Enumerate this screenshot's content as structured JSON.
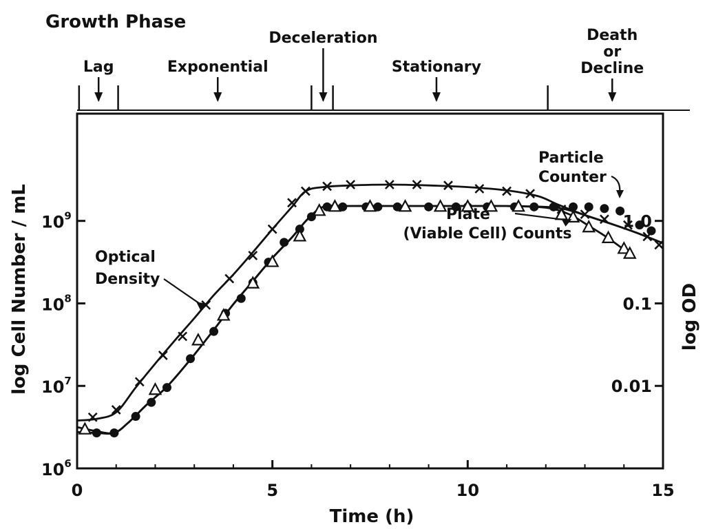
{
  "chart_data": {
    "type": "line",
    "title": "",
    "xlabel": "Time (h)",
    "ylabel": "log Cell Number / mL",
    "ylabel_right": "log OD",
    "xlim": [
      0,
      15
    ],
    "ylim_log10": [
      6,
      10.3
    ],
    "x_ticks": [
      "0",
      "5",
      "10",
      "15"
    ],
    "y_ticks": [
      {
        "exp": 6,
        "base": "10",
        "sup": "6"
      },
      {
        "exp": 7,
        "base": "10",
        "sup": "7"
      },
      {
        "exp": 8,
        "base": "10",
        "sup": "8"
      },
      {
        "exp": 9,
        "base": "10",
        "sup": "9"
      }
    ],
    "right_ticks": [
      {
        "label": "1.0",
        "od": 1.0
      },
      {
        "label": "0.1",
        "od": 0.1
      },
      {
        "label": "0.01",
        "od": 0.01
      }
    ],
    "growth_phase": {
      "title": "Growth Phase",
      "phases": [
        {
          "name": "Lag",
          "arrow_x": 0.55
        },
        {
          "name": "Exponential",
          "arrow_x": 3.6
        },
        {
          "name": "Deceleration",
          "arrow_x": 6.3
        },
        {
          "name": "Stationary",
          "arrow_x": 9.2
        },
        {
          "name": "Death\nor\nDecline",
          "arrow_x": 13.7
        }
      ],
      "boundaries": [
        0.05,
        1.05,
        6.0,
        6.55,
        12.05
      ]
    },
    "series": [
      {
        "name": "Optical Density",
        "marker": "x",
        "points": [
          [
            0.4,
            6.62
          ],
          [
            1.0,
            6.71
          ],
          [
            1.6,
            7.05
          ],
          [
            2.2,
            7.37
          ],
          [
            2.7,
            7.6
          ],
          [
            3.3,
            7.98
          ],
          [
            3.9,
            8.3
          ],
          [
            4.5,
            8.58
          ],
          [
            5.0,
            8.9
          ],
          [
            5.5,
            9.22
          ],
          [
            5.85,
            9.36
          ],
          [
            6.4,
            9.42
          ],
          [
            7.0,
            9.44
          ],
          [
            8.0,
            9.44
          ],
          [
            8.7,
            9.44
          ],
          [
            9.5,
            9.43
          ],
          [
            10.3,
            9.39
          ],
          [
            11.0,
            9.36
          ],
          [
            11.6,
            9.33
          ],
          [
            12.4,
            9.14
          ],
          [
            13.0,
            9.08
          ],
          [
            13.5,
            9.02
          ],
          [
            14.1,
            8.95
          ],
          [
            14.6,
            8.81
          ],
          [
            14.9,
            8.71
          ]
        ],
        "curve": [
          [
            0.0,
            6.58
          ],
          [
            0.5,
            6.6
          ],
          [
            1.0,
            6.68
          ],
          [
            1.5,
            6.98
          ],
          [
            2.0,
            7.27
          ],
          [
            2.5,
            7.55
          ],
          [
            3.0,
            7.82
          ],
          [
            3.5,
            8.1
          ],
          [
            4.0,
            8.35
          ],
          [
            4.5,
            8.62
          ],
          [
            5.0,
            8.9
          ],
          [
            5.5,
            9.17
          ],
          [
            5.85,
            9.36
          ],
          [
            6.3,
            9.41
          ],
          [
            7.0,
            9.43
          ],
          [
            8.0,
            9.44
          ],
          [
            9.0,
            9.43
          ],
          [
            10.0,
            9.41
          ],
          [
            11.0,
            9.37
          ],
          [
            11.8,
            9.3
          ],
          [
            12.3,
            9.2
          ],
          [
            13.0,
            9.07
          ],
          [
            13.7,
            8.96
          ],
          [
            14.3,
            8.86
          ],
          [
            15.0,
            8.73
          ]
        ]
      },
      {
        "name": "Particle Counter",
        "marker": "dot",
        "points": [
          [
            0.5,
            6.43
          ],
          [
            0.95,
            6.43
          ],
          [
            1.5,
            6.63
          ],
          [
            1.9,
            6.8
          ],
          [
            2.3,
            6.98
          ],
          [
            2.9,
            7.33
          ],
          [
            3.5,
            7.66
          ],
          [
            3.8,
            7.88
          ],
          [
            4.2,
            8.06
          ],
          [
            4.5,
            8.25
          ],
          [
            4.9,
            8.5
          ],
          [
            5.3,
            8.74
          ],
          [
            5.7,
            8.9
          ],
          [
            6.0,
            9.05
          ],
          [
            6.4,
            9.17
          ],
          [
            6.8,
            9.17
          ],
          [
            7.4,
            9.17
          ],
          [
            7.7,
            9.17
          ],
          [
            8.2,
            9.17
          ],
          [
            9.0,
            9.17
          ],
          [
            9.7,
            9.17
          ],
          [
            10.0,
            9.17
          ],
          [
            10.5,
            9.17
          ],
          [
            11.2,
            9.17
          ],
          [
            11.7,
            9.17
          ],
          [
            12.2,
            9.17
          ],
          [
            12.7,
            9.17
          ],
          [
            13.1,
            9.17
          ],
          [
            13.5,
            9.15
          ],
          [
            13.9,
            9.12
          ],
          [
            14.4,
            8.95
          ],
          [
            14.7,
            8.88
          ]
        ],
        "curve": [
          [
            0.0,
            6.44
          ],
          [
            0.5,
            6.43
          ],
          [
            0.95,
            6.43
          ],
          [
            1.3,
            6.55
          ],
          [
            1.8,
            6.78
          ],
          [
            2.3,
            6.99
          ],
          [
            2.9,
            7.32
          ],
          [
            3.5,
            7.68
          ],
          [
            4.0,
            7.99
          ],
          [
            4.5,
            8.27
          ],
          [
            5.0,
            8.55
          ],
          [
            5.5,
            8.8
          ],
          [
            5.9,
            9.02
          ],
          [
            6.3,
            9.17
          ],
          [
            6.8,
            9.18
          ],
          [
            8.0,
            9.18
          ],
          [
            9.0,
            9.18
          ],
          [
            10.0,
            9.18
          ],
          [
            11.0,
            9.18
          ],
          [
            12.0,
            9.17
          ],
          [
            12.5,
            9.14
          ],
          [
            13.0,
            9.07
          ],
          [
            13.7,
            8.96
          ],
          [
            14.3,
            8.86
          ],
          [
            15.0,
            8.73
          ]
        ]
      },
      {
        "name": "Plate (Viable Cell) Counts",
        "marker": "triangle",
        "points": [
          [
            0.2,
            6.47
          ],
          [
            2.0,
            6.95
          ],
          [
            3.1,
            7.55
          ],
          [
            3.75,
            7.85
          ],
          [
            4.5,
            8.24
          ],
          [
            5.0,
            8.5
          ],
          [
            5.7,
            8.81
          ],
          [
            6.2,
            9.12
          ],
          [
            6.6,
            9.17
          ],
          [
            7.5,
            9.17
          ],
          [
            8.4,
            9.17
          ],
          [
            9.3,
            9.17
          ],
          [
            10.0,
            9.17
          ],
          [
            10.6,
            9.17
          ],
          [
            11.3,
            9.17
          ],
          [
            12.4,
            9.07
          ],
          [
            12.7,
            9.04
          ],
          [
            13.1,
            8.92
          ],
          [
            13.6,
            8.79
          ],
          [
            14.0,
            8.66
          ],
          [
            14.15,
            8.6
          ]
        ],
        "curve": [
          [
            0.0,
            6.5
          ],
          [
            0.5,
            6.45
          ],
          [
            0.95,
            6.43
          ],
          [
            1.3,
            6.55
          ],
          [
            1.8,
            6.78
          ],
          [
            2.3,
            6.99
          ],
          [
            2.9,
            7.32
          ],
          [
            3.5,
            7.68
          ],
          [
            4.0,
            7.99
          ],
          [
            4.5,
            8.27
          ],
          [
            5.0,
            8.55
          ],
          [
            5.5,
            8.8
          ],
          [
            5.9,
            9.02
          ],
          [
            6.3,
            9.17
          ],
          [
            6.8,
            9.18
          ],
          [
            8.0,
            9.18
          ],
          [
            9.0,
            9.18
          ],
          [
            10.0,
            9.18
          ],
          [
            11.0,
            9.18
          ],
          [
            12.0,
            9.16
          ],
          [
            12.6,
            9.08
          ],
          [
            13.1,
            8.94
          ],
          [
            13.6,
            8.79
          ],
          [
            14.15,
            8.6
          ]
        ]
      }
    ],
    "annotations": [
      {
        "text": "Optical\nDensity",
        "points_to": [
          3.3,
          8.0
        ]
      },
      {
        "text": "Particle\nCounter",
        "points_to": [
          13.9,
          9.12
        ]
      },
      {
        "text": "Plate\n(Viable Cell) Counts",
        "points_to": [
          12.7,
          9.04
        ]
      }
    ],
    "grid": false,
    "legend": "none"
  }
}
